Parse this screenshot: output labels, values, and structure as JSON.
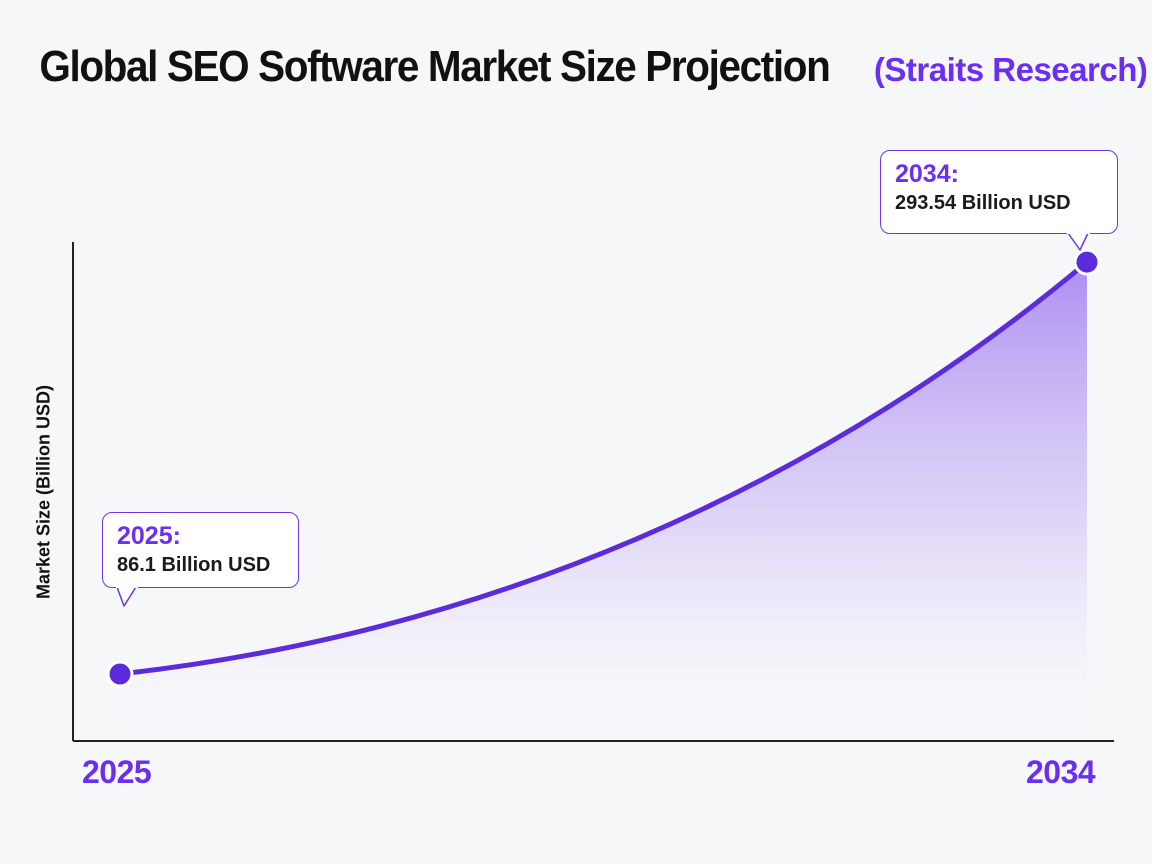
{
  "chart_data": {
    "type": "area",
    "title": "Global SEO Software Market Size Projection",
    "source": "(Straits Research)",
    "ylabel": "Market Size (Billion USD)",
    "xlabel": "",
    "x_ticks": [
      "2025",
      "2034"
    ],
    "points": [
      {
        "year": 2025,
        "value": 86.1,
        "year_label": "2025:",
        "value_label": "86.1 Billion USD"
      },
      {
        "year": 2034,
        "value": 293.54,
        "year_label": "2034:",
        "value_label": "293.54 Billion USD"
      }
    ],
    "ylim": [
      0,
      350
    ],
    "grid": false,
    "legend": "none"
  },
  "colors": {
    "line": "#5b2bdc",
    "fill": "#9f7cf0",
    "accent_text": "#6b2ff0",
    "axis": "#222222"
  }
}
